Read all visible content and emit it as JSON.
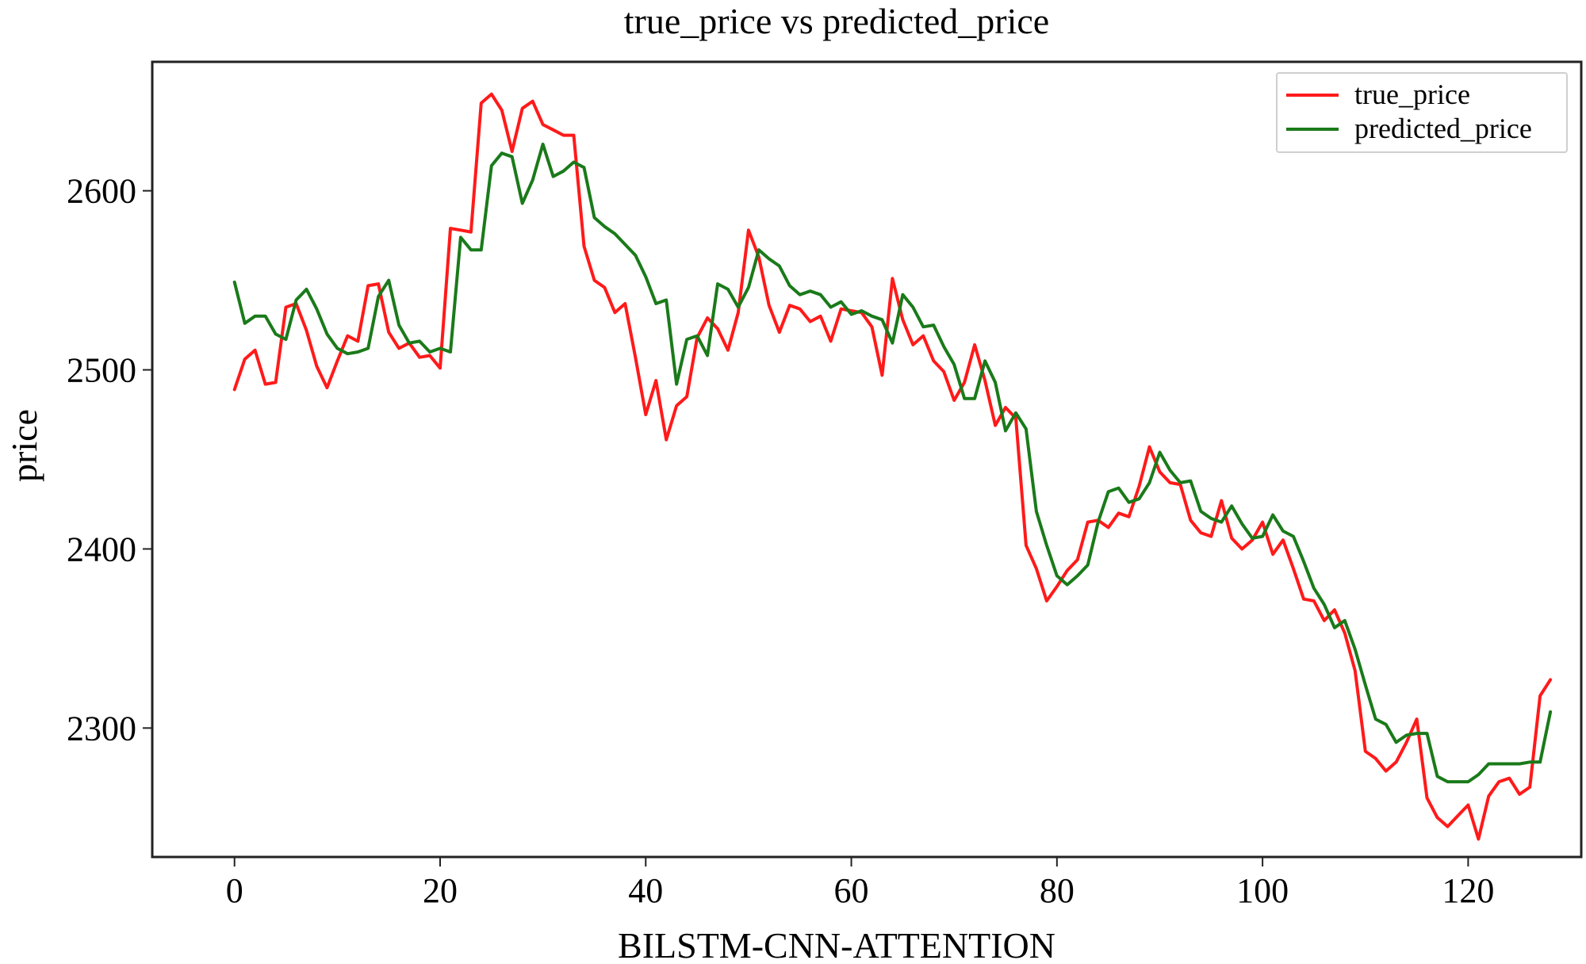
{
  "chart_data": {
    "type": "line",
    "title": "true_price vs predicted_price",
    "xlabel": "BILSTM-CNN-ATTENTION",
    "ylabel": "price",
    "xlim": [
      -8,
      131
    ],
    "ylim": [
      2228,
      2672
    ],
    "xticks": [
      0,
      20,
      40,
      60,
      80,
      100,
      120
    ],
    "yticks": [
      2300,
      2400,
      2500,
      2600
    ],
    "grid": false,
    "legend_position": "top-right",
    "series": [
      {
        "name": "true_price",
        "color": "#ff1a1a",
        "values": [
          2489,
          2506,
          2511,
          2492,
          2493,
          2535,
          2537,
          2522,
          2502,
          2490,
          2505,
          2519,
          2516,
          2547,
          2548,
          2521,
          2512,
          2515,
          2507,
          2508,
          2501,
          2579,
          2578,
          2577,
          2649,
          2654,
          2645,
          2622,
          2646,
          2650,
          2637,
          2634,
          2631,
          2631,
          2569,
          2550,
          2546,
          2532,
          2537,
          2507,
          2475,
          2494,
          2461,
          2480,
          2485,
          2518,
          2529,
          2523,
          2511,
          2532,
          2578,
          2563,
          2536,
          2521,
          2536,
          2534,
          2527,
          2530,
          2516,
          2534,
          2533,
          2532,
          2524,
          2497,
          2551,
          2528,
          2514,
          2519,
          2505,
          2499,
          2483,
          2493,
          2514,
          2494,
          2469,
          2479,
          2473,
          2402,
          2389,
          2371,
          2379,
          2388,
          2394,
          2415,
          2416,
          2412,
          2420,
          2418,
          2435,
          2457,
          2443,
          2437,
          2436,
          2416,
          2409,
          2407,
          2427,
          2406,
          2400,
          2405,
          2415,
          2397,
          2405,
          2389,
          2372,
          2371,
          2360,
          2366,
          2353,
          2332,
          2287,
          2283,
          2276,
          2281,
          2292,
          2305,
          2261,
          2250,
          2245,
          2251,
          2257,
          2238,
          2262,
          2270,
          2272,
          2263,
          2267,
          2318,
          2327
        ]
      },
      {
        "name": "predicted_price",
        "color": "#1a7a1a",
        "values": [
          2549,
          2526,
          2530,
          2530,
          2520,
          2517,
          2539,
          2545,
          2534,
          2520,
          2512,
          2509,
          2510,
          2512,
          2541,
          2550,
          2525,
          2515,
          2516,
          2510,
          2512,
          2510,
          2574,
          2567,
          2567,
          2614,
          2621,
          2619,
          2593,
          2606,
          2626,
          2608,
          2611,
          2616,
          2613,
          2585,
          2580,
          2576,
          2570,
          2564,
          2552,
          2537,
          2539,
          2492,
          2517,
          2519,
          2508,
          2548,
          2545,
          2535,
          2546,
          2567,
          2562,
          2558,
          2547,
          2542,
          2544,
          2542,
          2535,
          2538,
          2531,
          2533,
          2530,
          2528,
          2515,
          2542,
          2535,
          2524,
          2525,
          2513,
          2503,
          2484,
          2484,
          2505,
          2493,
          2466,
          2476,
          2467,
          2421,
          2402,
          2385,
          2380,
          2385,
          2391,
          2415,
          2432,
          2434,
          2426,
          2428,
          2437,
          2454,
          2444,
          2437,
          2438,
          2421,
          2417,
          2415,
          2424,
          2414,
          2406,
          2407,
          2419,
          2410,
          2407,
          2393,
          2378,
          2369,
          2356,
          2360,
          2344,
          2324,
          2305,
          2302,
          2292,
          2296,
          2297,
          2297,
          2273,
          2270,
          2270,
          2270,
          2274,
          2280,
          2280,
          2280,
          2280,
          2281,
          2281,
          2309
        ]
      }
    ]
  }
}
